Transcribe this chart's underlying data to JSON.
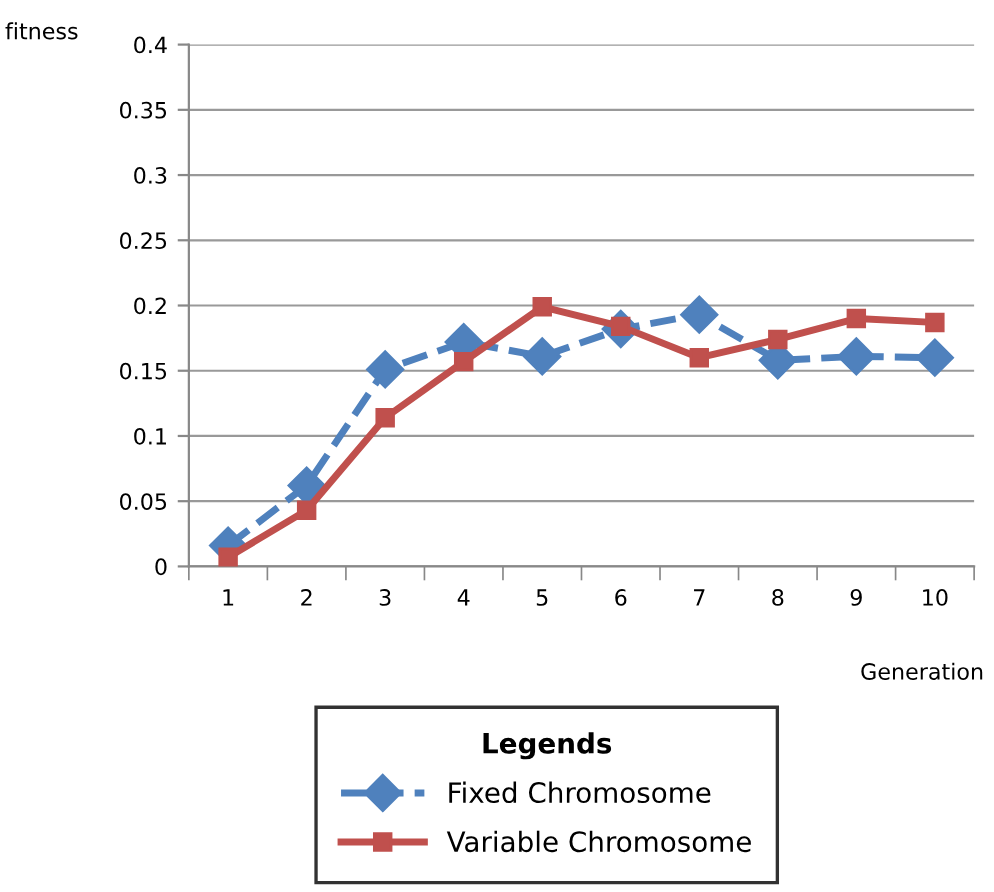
{
  "chart_data": {
    "type": "line",
    "xlabel": "Generation",
    "ylabel": "fitness",
    "legend_title": "Legends",
    "categories": [
      "1",
      "2",
      "3",
      "4",
      "5",
      "6",
      "7",
      "8",
      "9",
      "10"
    ],
    "series": [
      {
        "name": "Fixed Chromosome",
        "color": "#4f81bd",
        "marker": "diamond",
        "line_style": "dashed",
        "values": [
          0.016,
          0.062,
          0.151,
          0.172,
          0.161,
          0.182,
          0.193,
          0.158,
          0.161,
          0.16
        ]
      },
      {
        "name": "Variable Chromosome",
        "color": "#c0504d",
        "marker": "square",
        "line_style": "solid",
        "values": [
          0.007,
          0.043,
          0.114,
          0.157,
          0.199,
          0.184,
          0.16,
          0.174,
          0.19,
          0.187
        ]
      }
    ],
    "ylim": [
      0,
      0.4
    ],
    "yticks": [
      0,
      0.05,
      0.1,
      0.15,
      0.2,
      0.25,
      0.3,
      0.35,
      0.4
    ],
    "grid": "y",
    "legend": "bottom"
  }
}
